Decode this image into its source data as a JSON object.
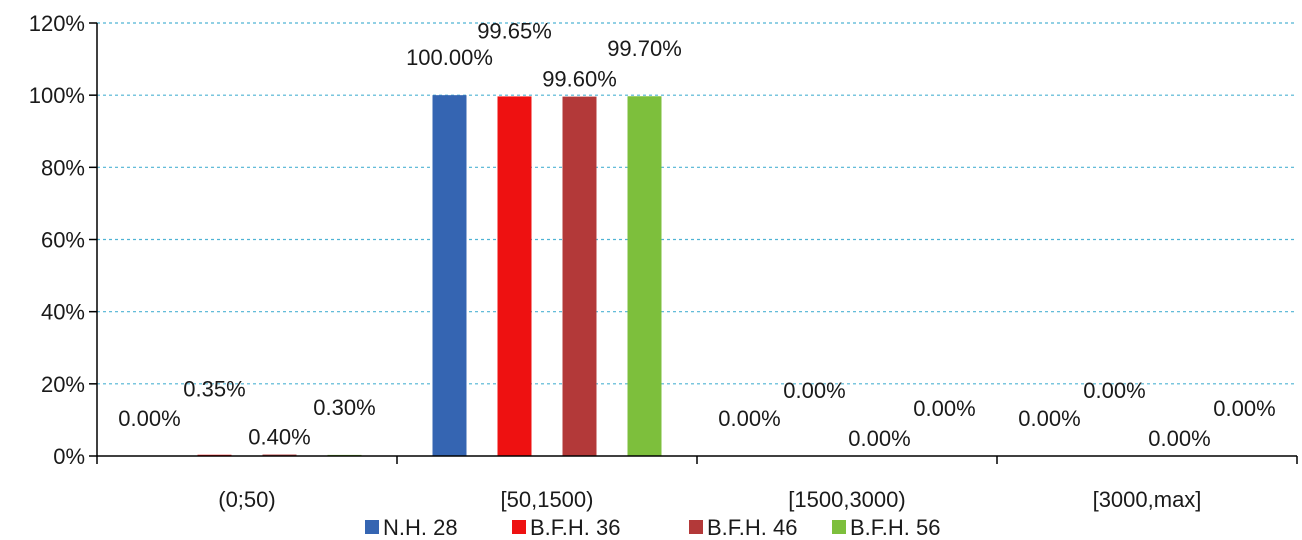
{
  "chart_data": {
    "type": "bar",
    "title": "",
    "xlabel": "",
    "ylabel": "",
    "ylim": [
      0,
      120
    ],
    "y_ticks": [
      0,
      20,
      40,
      60,
      80,
      100,
      120
    ],
    "y_tick_labels": [
      "0%",
      "20%",
      "40%",
      "60%",
      "80%",
      "100%",
      "120%"
    ],
    "grid": true,
    "legend_position": "bottom",
    "categories": [
      "(0;50)",
      "[50,1500)",
      "[1500,3000)",
      "[3000,max]"
    ],
    "series": [
      {
        "name": "N.H. 28",
        "color": "#3565b2",
        "values": [
          0,
          100,
          0,
          0
        ],
        "labels": [
          "0.00%",
          "100.00%",
          "0.00%",
          "0.00%"
        ]
      },
      {
        "name": "B.F.H. 36",
        "color": "#ee1111",
        "values": [
          0.35,
          99.65,
          0,
          0
        ],
        "labels": [
          "0.35%",
          "99.65%",
          "0.00%",
          "0.00%"
        ]
      },
      {
        "name": "B.F.H. 46",
        "color": "#b33939",
        "values": [
          0.4,
          99.6,
          0,
          0
        ],
        "labels": [
          "0.40%",
          "99.60%",
          "0.00%",
          "0.00%"
        ]
      },
      {
        "name": "B.F.H. 56",
        "color": "#7dbf3c",
        "values": [
          0.3,
          99.7,
          0,
          0
        ],
        "labels": [
          "0.30%",
          "99.70%",
          "0.00%",
          "0.00%"
        ]
      }
    ]
  }
}
